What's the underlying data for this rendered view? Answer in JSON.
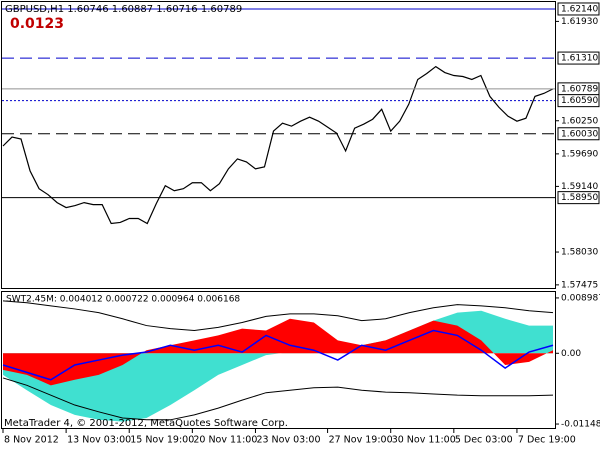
{
  "chart_data": [
    {
      "type": "line",
      "title": "GBPUSD,H1  1.60746 1.60887 1.60716 1.60789",
      "subtitle": "0.0123",
      "color": "#000000",
      "categories": [
        "8 Nov 2012",
        null,
        null,
        null,
        null,
        null,
        null,
        "13 Nov 03:00",
        null,
        null,
        null,
        null,
        null,
        null,
        "15 Nov 19:00",
        null,
        null,
        null,
        null,
        null,
        null,
        "20 Nov 11:00",
        null,
        null,
        null,
        null,
        null,
        null,
        "23 Nov 03:00",
        null,
        null,
        null,
        null,
        null,
        null,
        null,
        "27 Nov 19:00",
        null,
        null,
        null,
        null,
        null,
        null,
        "30 Nov 11:00",
        null,
        null,
        null,
        null,
        null,
        null,
        "5 Dec 03:00",
        null,
        null,
        null,
        null,
        null,
        null,
        "7 Dec 19:00",
        null,
        null,
        null,
        null
      ],
      "values": [
        1.59823,
        1.59974,
        1.59941,
        1.59403,
        1.59101,
        1.59,
        1.58866,
        1.58782,
        1.58816,
        1.58866,
        1.58832,
        1.58832,
        1.58513,
        1.5853,
        1.58597,
        1.58597,
        1.58513,
        1.58849,
        1.59151,
        1.59067,
        1.59101,
        1.59202,
        1.59202,
        1.59067,
        1.59185,
        1.59437,
        1.59605,
        1.59554,
        1.59437,
        1.5947,
        1.60075,
        1.60209,
        1.60159,
        1.60243,
        1.6031,
        1.60243,
        1.60142,
        1.60041,
        1.59739,
        1.60125,
        1.60192,
        1.60276,
        1.60444,
        1.60075,
        1.60243,
        1.60528,
        1.60948,
        1.61049,
        1.61166,
        1.61065,
        1.61015,
        1.60998,
        1.60948,
        1.61015,
        1.60662,
        1.60478,
        1.60327,
        1.60243,
        1.60293,
        1.60662,
        1.60713,
        1.60789
      ],
      "ylim": [
        1.57422,
        1.62258
      ],
      "yticks": [
        {
          "value": 1.6193,
          "label": "1.61930"
        },
        {
          "value": 1.6025,
          "label": "1.60250"
        },
        {
          "value": 1.5969,
          "label": "1.59690"
        },
        {
          "value": 1.5914,
          "label": "1.59140"
        },
        {
          "value": 1.5803,
          "label": "1.58030"
        },
        1.57475
      ],
      "levels": [
        {
          "value": 1.6214,
          "label": "1.62140",
          "color": "#0000cc",
          "style": "solid"
        },
        {
          "value": 1.6131,
          "label": "1.61310",
          "color": "#0000cc",
          "style": "dashed"
        },
        {
          "value": 1.60789,
          "label": "1.60789",
          "color": "#909090",
          "style": "solid"
        },
        {
          "value": 1.6059,
          "label": "1.60590",
          "color": "#0000cc",
          "style": "dotted"
        },
        {
          "value": 1.6003,
          "label": "1.60030",
          "color": "#000000",
          "style": "dashed"
        },
        {
          "value": 1.5895,
          "label": "1.58950",
          "color": "#000000",
          "style": "solid"
        }
      ]
    },
    {
      "type": "area",
      "title": "SWT2.45M: 0.004012 0.000722 0.000964 0.006168",
      "footer": "MetaTrader 4, © 2001-2012, MetaQuotes Software Corp.",
      "ylim": [
        -0.01213,
        0.00995
      ],
      "yticks": [
        0.008987,
        {
          "value": 0,
          "label": "0.00"
        },
        -0.011487
      ],
      "series": [
        {
          "color": "#40e0d0",
          "fill": true,
          "values": [
            -0.0035,
            -0.006,
            -0.0084,
            -0.01,
            -0.0108,
            -0.0111,
            -0.0105,
            -0.0084,
            -0.006,
            -0.0035,
            -0.0019,
            -0.0003,
            0.0002,
            0.0005,
            0.0008,
            0.0013,
            0.0021,
            0.0037,
            0.0053,
            0.0066,
            0.0069,
            0.0056,
            0.0045,
            0.0045
          ]
        },
        {
          "color": "#ff0000",
          "fill": true,
          "values": [
            -0.0027,
            -0.0035,
            -0.0052,
            -0.0043,
            -0.0035,
            -0.0019,
            0.0005,
            0.0013,
            0.0021,
            0.0029,
            0.004,
            0.0037,
            0.0056,
            0.005,
            0.0021,
            0.0013,
            0.0021,
            0.0037,
            0.0053,
            0.0045,
            0.0021,
            -0.0019,
            -0.0014,
            0.0005
          ]
        },
        {
          "color": "#000000",
          "fill": false,
          "values": [
            0.0085,
            0.0082,
            0.0077,
            0.0072,
            0.0066,
            0.0056,
            0.0045,
            0.004,
            0.0037,
            0.0042,
            0.005,
            0.006,
            0.0064,
            0.0064,
            0.0061,
            0.0053,
            0.0056,
            0.0066,
            0.0074,
            0.0079,
            0.0077,
            0.0074,
            0.0069,
            0.0066
          ]
        },
        {
          "color": "#000000",
          "fill": false,
          "values": [
            -0.004,
            -0.0052,
            -0.0068,
            -0.0084,
            -0.0095,
            -0.0105,
            -0.0108,
            -0.0108,
            -0.01,
            -0.0089,
            -0.0076,
            -0.0064,
            -0.006,
            -0.0056,
            -0.0055,
            -0.006,
            -0.0063,
            -0.0064,
            -0.0066,
            -0.0068,
            -0.0069,
            -0.0069,
            -0.0069,
            -0.0068
          ]
        },
        {
          "color": "#0000ff",
          "fill": false,
          "values": [
            -0.0019,
            -0.0031,
            -0.0043,
            -0.0019,
            -0.0011,
            -0.0003,
            0.0002,
            0.0013,
            0.0005,
            0.0013,
            0.0002,
            0.0029,
            0.0013,
            0.0005,
            -0.0011,
            0.0013,
            0.0005,
            0.0021,
            0.0037,
            0.0029,
            0.0005,
            -0.0024,
            0.0002,
            0.0013
          ]
        }
      ]
    }
  ]
}
